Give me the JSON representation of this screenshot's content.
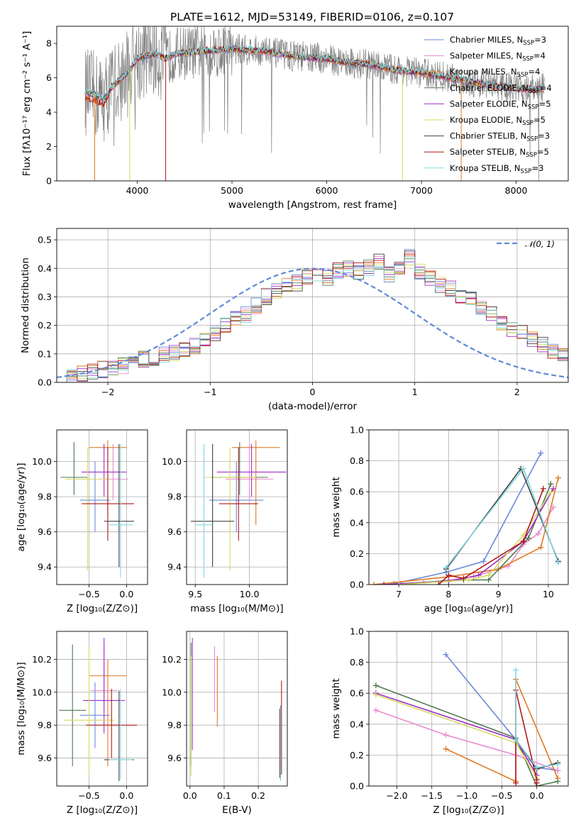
{
  "figure": {
    "title": "PLATE=1612, MJD=53149, FIBERID=0106, z=0.107"
  },
  "models": [
    {
      "name": "Chabrier MILES",
      "nssp": "3",
      "color": "#6a8ad8"
    },
    {
      "name": "Salpeter MILES",
      "nssp": "4",
      "color": "#e98ad0"
    },
    {
      "name": "Kroupa MILES",
      "nssp": "4",
      "color": "#e07a24"
    },
    {
      "name": "Chabrier ELODIE",
      "nssp": "4",
      "color": "#4e7a4e"
    },
    {
      "name": "Salpeter ELODIE",
      "nssp": "5",
      "color": "#a030c8"
    },
    {
      "name": "Kroupa ELODIE",
      "nssp": "5",
      "color": "#d4dc60"
    },
    {
      "name": "Chabrier STELIB",
      "nssp": "3",
      "color": "#404040"
    },
    {
      "name": "Salpeter STELIB",
      "nssp": "5",
      "color": "#b01818"
    },
    {
      "name": "Kroupa STELIB",
      "nssp": "3",
      "color": "#80d8e0"
    }
  ],
  "chart_data": [
    {
      "type": "line",
      "id": "spectrum",
      "xlabel": "wavelength [Angstrom, rest frame]",
      "ylabel": "Flux [fλ10⁻¹⁷ erg cm⁻² s⁻¹ A⁻¹]",
      "xlim": [
        3150,
        8550
      ],
      "ylim": [
        0,
        9
      ],
      "xticks": [
        4000,
        5000,
        6000,
        7000,
        8000
      ],
      "yticks": [
        0,
        2,
        4,
        6,
        8
      ],
      "grid": false,
      "legend": "top-right",
      "data_color": "#808080",
      "model_shape": {
        "x": [
          3450,
          3550,
          3650,
          3720,
          3800,
          3900,
          4000,
          4100,
          4200,
          4300,
          4400,
          4600,
          4800,
          5000,
          5200,
          5400,
          5600,
          5800,
          6000,
          6200,
          6400,
          6600,
          6800,
          7000,
          7200,
          7400,
          7600,
          7800,
          8000,
          8200,
          8300
        ],
        "y": [
          5.2,
          5.0,
          4.8,
          5.4,
          5.8,
          6.3,
          7.1,
          7.3,
          7.4,
          7.1,
          7.4,
          7.5,
          7.6,
          7.7,
          7.6,
          7.5,
          7.3,
          7.2,
          7.1,
          6.9,
          6.8,
          6.6,
          6.4,
          6.3,
          6.1,
          5.9,
          5.7,
          5.5,
          5.4,
          5.3,
          5.4
        ]
      }
    },
    {
      "type": "line",
      "id": "residuals",
      "xlabel": "(data-model)/error",
      "ylabel": "Normed distribution",
      "xlim": [
        -2.5,
        2.5
      ],
      "ylim": [
        0,
        0.54
      ],
      "xticks": [
        -2,
        -1,
        0,
        1,
        2
      ],
      "yticks": [
        0.0,
        0.1,
        0.2,
        0.3,
        0.4,
        0.5
      ],
      "grid": true,
      "legend": "top-right",
      "gaussian": {
        "label": "𝒩(0, 1)",
        "mean": 0,
        "sigma": 1,
        "color": "#5f8ad8"
      },
      "histogram_base": {
        "bin_width": 0.1,
        "start": -2.5,
        "values": [
          0.02,
          0.025,
          0.03,
          0.04,
          0.045,
          0.05,
          0.06,
          0.07,
          0.08,
          0.085,
          0.095,
          0.1,
          0.11,
          0.13,
          0.15,
          0.17,
          0.2,
          0.22,
          0.24,
          0.27,
          0.3,
          0.32,
          0.34,
          0.35,
          0.37,
          0.38,
          0.37,
          0.39,
          0.4,
          0.39,
          0.4,
          0.42,
          0.38,
          0.4,
          0.44,
          0.39,
          0.37,
          0.34,
          0.33,
          0.3,
          0.29,
          0.26,
          0.24,
          0.21,
          0.19,
          0.17,
          0.15,
          0.13,
          0.11,
          0.1,
          0.08,
          0.07,
          0.065,
          0.06,
          0.05,
          0.045,
          0.04,
          0.035,
          0.03,
          0.025
        ]
      }
    },
    {
      "type": "scatter",
      "id": "age-vs-z",
      "xlabel": "Z [log₁₀(Z/Z⊙)]",
      "ylabel": "age  [log₁₀(age/yr)]",
      "xlim": [
        -0.93,
        0.28
      ],
      "ylim": [
        9.3,
        10.18
      ],
      "xticks": [
        -0.5,
        0.0
      ],
      "yticks": [
        9.4,
        9.6,
        9.8,
        10.0
      ],
      "xtick_labels": [
        "−0.5",
        "0.0"
      ],
      "ytick_labels": [
        "9.4",
        "9.6",
        "9.8",
        "10.0"
      ],
      "grid": true,
      "points": [
        {
          "x": -0.42,
          "y": 9.78,
          "xerr": [
            0.2,
            0.2
          ],
          "yerr": [
            0.18,
            0.22
          ]
        },
        {
          "x": -0.18,
          "y": 9.9,
          "xerr": [
            0.2,
            0.2
          ],
          "yerr": [
            0.12,
            0.2
          ]
        },
        {
          "x": -0.25,
          "y": 10.08,
          "xerr": [
            0.25,
            0.25
          ],
          "yerr": [
            0.38,
            0.04
          ]
        },
        {
          "x": -0.7,
          "y": 9.91,
          "xerr": [
            0.18,
            0.18
          ],
          "yerr": [
            0.1,
            0.2
          ]
        },
        {
          "x": -0.3,
          "y": 9.94,
          "xerr": [
            0.3,
            0.3
          ],
          "yerr": [
            0.14,
            0.16
          ]
        },
        {
          "x": -0.52,
          "y": 9.9,
          "xerr": [
            0.3,
            0.3
          ],
          "yerr": [
            0.52,
            0.18
          ]
        },
        {
          "x": -0.1,
          "y": 9.66,
          "xerr": [
            0.2,
            0.2
          ],
          "yerr": [
            0.26,
            0.44
          ]
        },
        {
          "x": -0.25,
          "y": 9.76,
          "xerr": [
            0.35,
            0.35
          ],
          "yerr": [
            0.21,
            0.32
          ]
        },
        {
          "x": -0.08,
          "y": 9.64,
          "xerr": [
            0.16,
            0.16
          ],
          "yerr": [
            0.3,
            0.46
          ]
        }
      ]
    },
    {
      "type": "scatter",
      "id": "age-vs-mass",
      "xlabel": "mass [log₁₀(M/M⊙)]",
      "ylabel": "",
      "xlim": [
        9.42,
        10.35
      ],
      "ylim": [
        9.3,
        10.18
      ],
      "xticks": [
        9.5,
        10.0
      ],
      "yticks": [
        9.4,
        9.6,
        9.8,
        10.0
      ],
      "xtick_labels": [
        "9.5",
        "10.0"
      ],
      "ytick_labels": [
        "9.4",
        "9.6",
        "9.8",
        "10.0"
      ],
      "grid": true,
      "points": [
        {
          "x": 9.88,
          "y": 9.78,
          "xerr": [
            0.25,
            0.25
          ],
          "yerr": [
            0.18,
            0.22
          ]
        },
        {
          "x": 10.0,
          "y": 9.9,
          "xerr": [
            0.22,
            0.22
          ],
          "yerr": [
            0.12,
            0.2
          ]
        },
        {
          "x": 10.06,
          "y": 10.08,
          "xerr": [
            0.22,
            0.22
          ],
          "yerr": [
            0.44,
            0.04
          ]
        },
        {
          "x": 9.91,
          "y": 9.91,
          "xerr": [
            0.26,
            0.26
          ],
          "yerr": [
            0.1,
            0.2
          ]
        },
        {
          "x": 10.02,
          "y": 9.94,
          "xerr": [
            0.32,
            0.32
          ],
          "yerr": [
            0.14,
            0.16
          ]
        },
        {
          "x": 9.82,
          "y": 9.91,
          "xerr": [
            0.24,
            0.24
          ],
          "yerr": [
            0.53,
            0.17
          ]
        },
        {
          "x": 9.66,
          "y": 9.66,
          "xerr": [
            0.2,
            0.2
          ],
          "yerr": [
            0.26,
            0.44
          ]
        },
        {
          "x": 9.9,
          "y": 9.76,
          "xerr": [
            0.18,
            0.18
          ],
          "yerr": [
            0.21,
            0.32
          ]
        },
        {
          "x": 9.58,
          "y": 9.64,
          "xerr": [
            0.08,
            0.08
          ],
          "yerr": [
            0.3,
            0.46
          ]
        }
      ]
    },
    {
      "type": "line",
      "id": "massweight-vs-age",
      "xlabel": "age  [log₁₀(age/yr)]",
      "ylabel": "mass weight",
      "xlim": [
        6.4,
        10.4
      ],
      "ylim": [
        0,
        1
      ],
      "xticks": [
        7,
        8,
        9,
        10
      ],
      "yticks": [
        0.0,
        0.2,
        0.4,
        0.6,
        0.8,
        1.0
      ],
      "xtick_labels": [
        "7",
        "8",
        "9",
        "10"
      ],
      "ytick_labels": [
        "0.0",
        "0.2",
        "0.4",
        "0.6",
        "0.8",
        "1.0"
      ],
      "grid": true,
      "series": [
        {
          "x": [
            6.9,
            7.95,
            8.7,
            9.85
          ],
          "y": [
            0.005,
            0.08,
            0.15,
            0.85
          ]
        },
        {
          "x": [
            7.5,
            8.5,
            9.2,
            9.5,
            9.8,
            10.1
          ],
          "y": [
            0.01,
            0.05,
            0.12,
            0.26,
            0.33,
            0.5
          ]
        },
        {
          "x": [
            6.5,
            8.0,
            9.0,
            9.85,
            10.2
          ],
          "y": [
            0.0,
            0.05,
            0.1,
            0.24,
            0.69
          ]
        },
        {
          "x": [
            6.7,
            8.3,
            8.8,
            9.6,
            10.05
          ],
          "y": [
            0.0,
            0.03,
            0.03,
            0.3,
            0.65
          ]
        },
        {
          "x": [
            6.7,
            8.0,
            8.6,
            9.5,
            10.1
          ],
          "y": [
            0.0,
            0.02,
            0.06,
            0.28,
            0.62
          ]
        },
        {
          "x": [
            7.0,
            8.4,
            8.8,
            9.5,
            10.05
          ],
          "y": [
            0.0,
            0.03,
            0.06,
            0.32,
            0.6
          ]
        },
        {
          "x": [
            7.95,
            9.45,
            10.2
          ],
          "y": [
            0.1,
            0.75,
            0.15
          ]
        },
        {
          "x": [
            7.8,
            8.0,
            8.3,
            9.5,
            9.9
          ],
          "y": [
            0.0,
            0.06,
            0.04,
            0.28,
            0.62
          ]
        },
        {
          "x": [
            7.95,
            9.5,
            10.2
          ],
          "y": [
            0.11,
            0.75,
            0.14
          ]
        }
      ]
    },
    {
      "type": "scatter",
      "id": "mass-vs-z",
      "xlabel": "Z [log₁₀(Z/Z⊙)]",
      "ylabel": "mass [log₁₀(M/M⊙)]",
      "xlim": [
        -0.93,
        0.28
      ],
      "ylim": [
        9.43,
        10.37
      ],
      "xticks": [
        -0.5,
        0.0
      ],
      "yticks": [
        9.6,
        9.8,
        10.0,
        10.2
      ],
      "xtick_labels": [
        "−0.5",
        "0.0"
      ],
      "ytick_labels": [
        "9.6",
        "9.8",
        "10.0",
        "10.2"
      ],
      "grid": true,
      "points": [
        {
          "x": -0.42,
          "y": 9.86,
          "xerr": [
            0.2,
            0.2
          ],
          "yerr": [
            0.2,
            0.2
          ]
        },
        {
          "x": -0.3,
          "y": 10.01,
          "xerr": [
            0.18,
            0.18
          ],
          "yerr": [
            0.12,
            0.28
          ]
        },
        {
          "x": -0.25,
          "y": 10.1,
          "xerr": [
            0.25,
            0.25
          ],
          "yerr": [
            0.55,
            0.1
          ]
        },
        {
          "x": -0.72,
          "y": 9.89,
          "xerr": [
            0.18,
            0.18
          ],
          "yerr": [
            0.34,
            0.4
          ]
        },
        {
          "x": -0.3,
          "y": 9.95,
          "xerr": [
            0.28,
            0.28
          ],
          "yerr": [
            0.2,
            0.38
          ]
        },
        {
          "x": -0.5,
          "y": 9.83,
          "xerr": [
            0.34,
            0.34
          ],
          "yerr": [
            0.33,
            0.45
          ]
        },
        {
          "x": -0.1,
          "y": 9.59,
          "xerr": [
            0.2,
            0.2
          ],
          "yerr": [
            0.13,
            0.42
          ]
        },
        {
          "x": -0.2,
          "y": 9.8,
          "xerr": [
            0.34,
            0.34
          ],
          "yerr": [
            0.2,
            0.22
          ]
        },
        {
          "x": -0.08,
          "y": 9.59,
          "xerr": [
            0.16,
            0.16
          ],
          "yerr": [
            0.12,
            0.43
          ]
        }
      ]
    },
    {
      "type": "scatter",
      "id": "mass-vs-ebv",
      "xlabel": "E(B-V)",
      "ylabel": "",
      "xlim": [
        -0.01,
        0.285
      ],
      "ylim": [
        9.43,
        10.37
      ],
      "xticks": [
        0.0,
        0.1,
        0.2
      ],
      "yticks": [
        9.6,
        9.8,
        10.0,
        10.2
      ],
      "xtick_labels": [
        "0.0",
        "0.1",
        "0.2"
      ],
      "ytick_labels": [
        "9.6",
        "9.8",
        "10.0",
        "10.2"
      ],
      "grid": true,
      "points": [
        {
          "x": 0.265,
          "y": 9.62,
          "xerr": [
            0,
            0
          ],
          "yerr": [
            0.15,
            0.3
          ]
        },
        {
          "x": 0.072,
          "y": 10.06,
          "xerr": [
            0,
            0
          ],
          "yerr": [
            0.18,
            0.22
          ]
        },
        {
          "x": 0.08,
          "y": 10.0,
          "xerr": [
            0,
            0
          ],
          "yerr": [
            0.21,
            0.22
          ]
        },
        {
          "x": 0.003,
          "y": 9.9,
          "xerr": [
            0,
            0
          ],
          "yerr": [
            0.35,
            0.4
          ]
        },
        {
          "x": 0.007,
          "y": 9.95,
          "xerr": [
            0,
            0
          ],
          "yerr": [
            0.3,
            0.38
          ]
        },
        {
          "x": 0.003,
          "y": 9.85,
          "xerr": [
            0,
            0
          ],
          "yerr": [
            0.36,
            0.37
          ]
        },
        {
          "x": 0.263,
          "y": 9.7,
          "xerr": [
            0,
            0
          ],
          "yerr": [
            0.22,
            0.2
          ]
        },
        {
          "x": 0.268,
          "y": 9.8,
          "xerr": [
            0,
            0
          ],
          "yerr": [
            0.3,
            0.27
          ]
        },
        {
          "x": 0.265,
          "y": 9.7,
          "xerr": [
            0,
            0
          ],
          "yerr": [
            0.24,
            0.2
          ]
        }
      ]
    },
    {
      "type": "line",
      "id": "massweight-vs-z",
      "xlabel": "Z [log₁₀(Z/Z⊙)]",
      "ylabel": "mass weight",
      "xlim": [
        -2.4,
        0.45
      ],
      "ylim": [
        0,
        1
      ],
      "xticks": [
        -2.0,
        -1.5,
        -1.0,
        -0.5,
        0.0
      ],
      "yticks": [
        0.0,
        0.2,
        0.4,
        0.6,
        0.8,
        1.0
      ],
      "xtick_labels": [
        "−2.0",
        "−1.5",
        "−1.0",
        "−0.5",
        "0.0"
      ],
      "ytick_labels": [
        "0.0",
        "0.2",
        "0.4",
        "0.6",
        "0.8",
        "1.0"
      ],
      "grid": true,
      "series": [
        {
          "x": [
            -1.3,
            -0.3,
            0.0,
            0.3
          ],
          "y": [
            0.85,
            0.3,
            0.12,
            0.1
          ]
        },
        {
          "x": [
            -2.3,
            -1.3,
            -0.3,
            0.3
          ],
          "y": [
            0.49,
            0.33,
            0.2,
            0.1
          ]
        },
        {
          "x": [
            -1.3,
            -0.3,
            -0.3,
            0.3
          ],
          "y": [
            0.24,
            0.03,
            0.69,
            0.05
          ]
        },
        {
          "x": [
            -2.3,
            -0.3,
            0.0,
            0.3
          ],
          "y": [
            0.65,
            0.31,
            0.0,
            0.03
          ]
        },
        {
          "x": [
            -2.3,
            -0.3,
            0.0
          ],
          "y": [
            0.6,
            0.3,
            0.07
          ]
        },
        {
          "x": [
            -2.3,
            -0.3,
            0.0
          ],
          "y": [
            0.59,
            0.28,
            0.05
          ]
        },
        {
          "x": [
            -0.3,
            0.0,
            0.3
          ],
          "y": [
            0.3,
            0.11,
            0.15
          ]
        },
        {
          "x": [
            -0.3,
            -0.3,
            0.0,
            0.0
          ],
          "y": [
            0.02,
            0.62,
            0.04,
            0.02
          ]
        },
        {
          "x": [
            -0.3,
            -0.3,
            0.0,
            0.3
          ],
          "y": [
            0.75,
            0.3,
            0.12,
            0.14
          ]
        }
      ]
    }
  ]
}
